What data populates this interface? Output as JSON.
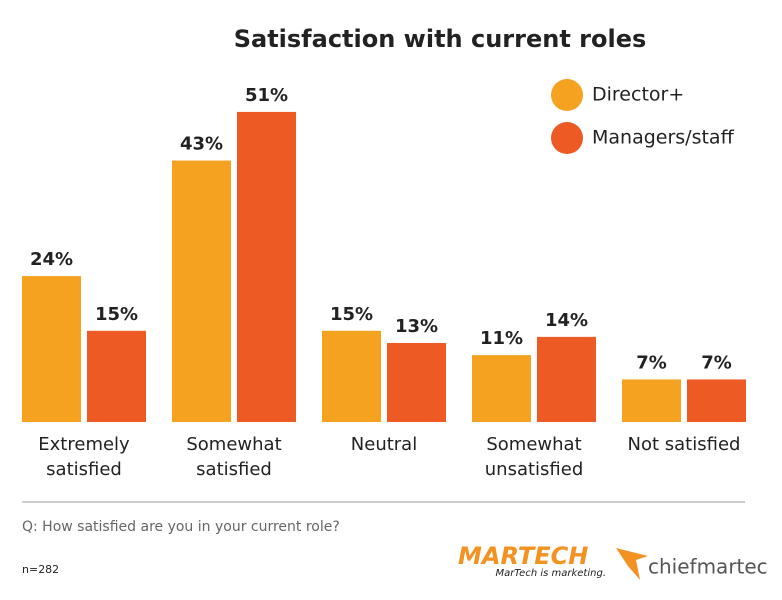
{
  "chart_data": {
    "type": "bar",
    "title": "Satisfaction with current roles",
    "categories": [
      "Extremely satisfied",
      "Somewhat satisfied",
      "Neutral",
      "Somewhat unsatisfied",
      "Not satisfied"
    ],
    "series": [
      {
        "name": "Director+",
        "color": "#f4a21f",
        "values": [
          24,
          43,
          15,
          11,
          7
        ],
        "value_labels": [
          "24%",
          "43%",
          "15%",
          "11%",
          "7%"
        ]
      },
      {
        "name": "Managers/staff",
        "color": "#ee5a24",
        "values": [
          15,
          51,
          13,
          14,
          7
        ],
        "value_labels": [
          "15%",
          "51%",
          "13%",
          "14%",
          "7%"
        ]
      }
    ],
    "legend": "top-right",
    "question": "Q: How satisfied are you in your current role?",
    "sample_size": "n=282",
    "logos": {
      "martech": "MARTECH",
      "martech_tagline": "MarTech is marketing.",
      "chiefmartec": "chiefmartec"
    }
  }
}
